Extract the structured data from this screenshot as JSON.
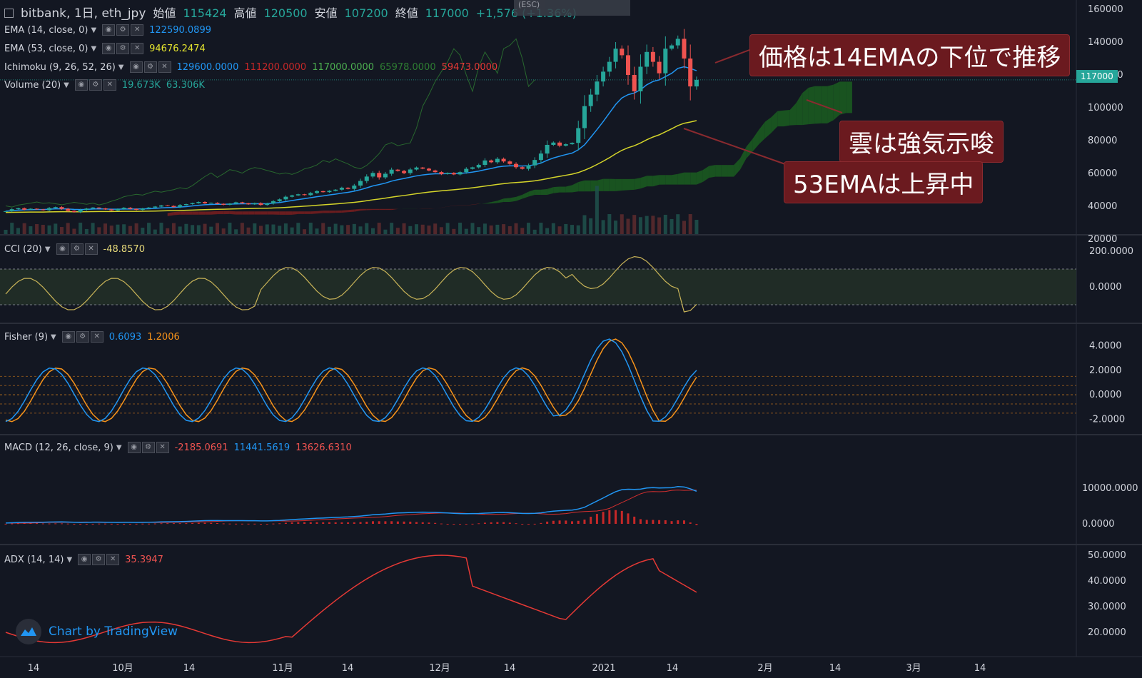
{
  "header": {
    "symbol": "bitbank, 1日, eth_jpy",
    "open_label": "始値",
    "open_value": "115424",
    "high_label": "高値",
    "high_value": "120500",
    "low_label": "安値",
    "low_value": "107200",
    "close_label": "終値",
    "close_value": "117000",
    "change": "+1,576 (+1.36%)",
    "esc_hint": "(ESC)"
  },
  "legends": {
    "ema14": {
      "label": "EMA (14, close, 0)",
      "value": "122590.0899"
    },
    "ema53": {
      "label": "EMA (53, close, 0)",
      "value": "94676.2474"
    },
    "ichimoku": {
      "label": "Ichimoku (9, 26, 52, 26)",
      "values": [
        "129600.0000",
        "111200.0000",
        "117000.0000",
        "65978.0000",
        "59473.0000"
      ]
    },
    "volume": {
      "label": "Volume (20)",
      "values": [
        "19.673K",
        "63.306K"
      ]
    },
    "cci": {
      "label": "CCI (20)",
      "value": "-48.8570"
    },
    "fisher": {
      "label": "Fisher (9)",
      "values": [
        "0.6093",
        "1.2006"
      ]
    },
    "macd": {
      "label": "MACD (12, 26, close, 9)",
      "values": [
        "-2185.0691",
        "11441.5619",
        "13626.6310"
      ]
    },
    "adx": {
      "label": "ADX (14, 14)",
      "value": "35.3947"
    }
  },
  "callouts": {
    "c1": "価格は14EMAの下位で推移",
    "c2": "雲は強気示唆",
    "c3": "53EMAは上昇中"
  },
  "price_tag": "117000",
  "watermark": "Chart by TradingView",
  "colors": {
    "background": "#131722",
    "up": "#26a69a",
    "down": "#ef5350",
    "ema14": "#2196f3",
    "ema53": "#d4d42a",
    "cloud_bull": "#1b5e20",
    "cloud_bear": "#7a1f1f",
    "cci": "#c9b458",
    "fisher": "#2196f3",
    "trigger": "#f7931a",
    "macd": "#2196f3",
    "signal": "#d32f2f",
    "adx": "#e53935",
    "callout": "#6b1a1f"
  },
  "chart_data": [
    {
      "type": "candlestick",
      "title": "bitbank, 1日, eth_jpy",
      "ylim": [
        20000,
        160000
      ],
      "y_ticks": [
        "160000",
        "140000",
        "120000",
        "100000",
        "80000",
        "60000",
        "40000",
        "20000"
      ],
      "x_ticks": [
        "14",
        "10月",
        "14",
        "11月",
        "14",
        "12月",
        "14",
        "2021",
        "14",
        "2月",
        "14",
        "3月",
        "14"
      ],
      "close": [
        37000,
        38200,
        38800,
        37900,
        38500,
        38100,
        37600,
        38900,
        39500,
        38400,
        37200,
        36500,
        37800,
        38600,
        39200,
        38700,
        38100,
        37500,
        38300,
        39100,
        38400,
        37800,
        38600,
        39200,
        39800,
        40500,
        40200,
        39500,
        40700,
        41300,
        41900,
        42600,
        41800,
        42100,
        41500,
        40900,
        41600,
        42400,
        41800,
        41200,
        41900,
        40800,
        41700,
        43100,
        44200,
        45800,
        46600,
        47300,
        46800,
        48100,
        49200,
        48600,
        49400,
        50100,
        51300,
        50600,
        52600,
        55400,
        58100,
        60300,
        57600,
        59800,
        62300,
        61500,
        60200,
        62400,
        63600,
        62900,
        61800,
        60800,
        59600,
        60300,
        59400,
        60800,
        62800,
        63700,
        65200,
        67900,
        66800,
        68900,
        67300,
        65800,
        63800,
        62800,
        64900,
        68200,
        72100,
        77400,
        78800,
        76900,
        77800,
        78600,
        87600,
        101000,
        108000,
        116000,
        122000,
        128000,
        136000,
        132000,
        120000,
        110000,
        125000,
        134000,
        128000,
        121000,
        136000,
        138000,
        142000,
        130000,
        113000,
        117000
      ],
      "ema14": [
        37000,
        37300,
        37600,
        37800,
        37900,
        38000,
        38000,
        38200,
        38400,
        38500,
        38300,
        38100,
        38000,
        38100,
        38300,
        38400,
        38300,
        38200,
        38200,
        38300,
        38300,
        38300,
        38400,
        38500,
        38700,
        39000,
        39200,
        39300,
        39500,
        39800,
        40200,
        40600,
        40900,
        41100,
        41200,
        41200,
        41300,
        41400,
        41500,
        41500,
        41600,
        41500,
        41600,
        41900,
        42300,
        42900,
        43500,
        44100,
        44600,
        45200,
        45800,
        46300,
        46900,
        47400,
        48000,
        48500,
        49200,
        50100,
        51200,
        52400,
        53200,
        54100,
        55300,
        56200,
        56900,
        57700,
        58500,
        59100,
        59500,
        59800,
        59800,
        59900,
        59900,
        60000,
        60300,
        60800,
        61400,
        62300,
        63000,
        63900,
        64400,
        64600,
        64600,
        64500,
        64700,
        65300,
        66300,
        68000,
        69400,
        70500,
        71500,
        72400,
        74400,
        77400,
        82000,
        86700,
        91600,
        96800,
        102000,
        106000,
        108000,
        109000,
        111000,
        114000,
        116000,
        117000,
        119000,
        121000,
        124000,
        125000,
        124000,
        122590
      ]
    },
    {
      "type": "line",
      "title": "CCI (20)",
      "ylim": [
        -200,
        300
      ],
      "y_ticks": [
        "200.0000",
        "0.0000"
      ]
    },
    {
      "type": "line",
      "title": "Fisher (9)",
      "ylim": [
        -2.5,
        5
      ],
      "y_ticks": [
        "4.0000",
        "2.0000",
        "0.0000",
        "-2.0000"
      ]
    },
    {
      "type": "line",
      "title": "MACD (12, 26, close, 9)",
      "ylim": [
        -3000,
        22000
      ],
      "y_ticks": [
        "10000.0000",
        "0.0000"
      ]
    },
    {
      "type": "line",
      "title": "ADX (14, 14)",
      "ylim": [
        10,
        55
      ],
      "y_ticks": [
        "50.0000",
        "40.0000",
        "30.0000",
        "20.0000"
      ]
    }
  ]
}
